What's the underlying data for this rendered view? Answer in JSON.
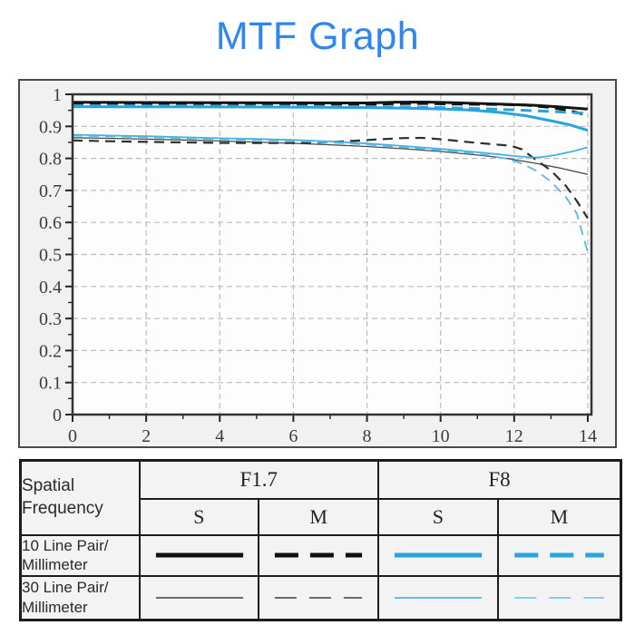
{
  "title": {
    "text": "MTF Graph",
    "color": "#2e87f0"
  },
  "chart_data": {
    "type": "line",
    "title": "MTF Graph",
    "xlabel": "",
    "ylabel": "",
    "xlim": [
      0,
      14.1
    ],
    "ylim": [
      0,
      1
    ],
    "grid": true,
    "grid_color": "#bcbcbc",
    "frame_color": "#333333",
    "x_ticks": [
      {
        "v": 0,
        "label": "0"
      },
      {
        "v": 2,
        "label": "2"
      },
      {
        "v": 4,
        "label": "4"
      },
      {
        "v": 6,
        "label": "6"
      },
      {
        "v": 8,
        "label": "8"
      },
      {
        "v": 10,
        "label": "10"
      },
      {
        "v": 12,
        "label": "12"
      },
      {
        "v": 14,
        "label": "14"
      }
    ],
    "y_ticks": [
      {
        "v": 1,
        "label": "1"
      },
      {
        "v": 0.9,
        "label": "0.9"
      },
      {
        "v": 0.8,
        "label": "0.8"
      },
      {
        "v": 0.7,
        "label": "0.7"
      },
      {
        "v": 0.6,
        "label": "0.6"
      },
      {
        "v": 0.5,
        "label": "0.5"
      },
      {
        "v": 0.4,
        "label": "0.4"
      },
      {
        "v": 0.3,
        "label": "0.3"
      },
      {
        "v": 0.2,
        "label": "0.2"
      },
      {
        "v": 0.1,
        "label": "0.1"
      },
      {
        "v": 0,
        "label": "0"
      }
    ],
    "series": [
      {
        "name": "F1.7 S 10 Line Pair/Millimeter",
        "aperture": "F1.7",
        "orientation": "S",
        "lp": "10",
        "color": "#141414",
        "width": 3,
        "dash": "none",
        "legend": {
          "color": "#111111",
          "width": 5,
          "dash": "none"
        },
        "points": [
          [
            0,
            0.975
          ],
          [
            2,
            0.9745
          ],
          [
            4,
            0.974
          ],
          [
            6,
            0.9735
          ],
          [
            8,
            0.973
          ],
          [
            8.8,
            0.9755
          ],
          [
            9.6,
            0.976
          ],
          [
            10.5,
            0.9735
          ],
          [
            11.5,
            0.97
          ],
          [
            12.5,
            0.966
          ],
          [
            13.2,
            0.961
          ],
          [
            14,
            0.954
          ]
        ]
      },
      {
        "name": "F1.7 M 10 Line Pair/Millimeter",
        "aperture": "F1.7",
        "orientation": "M",
        "lp": "10",
        "color": "#141414",
        "width": 3,
        "dash": "12 7",
        "legend": {
          "color": "#111111",
          "width": 5,
          "dash": "26 13"
        },
        "points": [
          [
            0,
            0.9675
          ],
          [
            2,
            0.967
          ],
          [
            4,
            0.9665
          ],
          [
            6,
            0.966
          ],
          [
            7.5,
            0.9665
          ],
          [
            8.8,
            0.971
          ],
          [
            9.6,
            0.9715
          ],
          [
            10.5,
            0.9695
          ],
          [
            11.5,
            0.9685
          ],
          [
            12.3,
            0.9665
          ],
          [
            13,
            0.959
          ],
          [
            13.5,
            0.949
          ],
          [
            14,
            0.9345
          ]
        ]
      },
      {
        "name": "F8 S 10 Line Pair/Millimeter",
        "aperture": "F8",
        "orientation": "S",
        "lp": "10",
        "color": "#29a3dc",
        "width": 3,
        "dash": "none",
        "legend": {
          "color": "#29a3dc",
          "width": 5,
          "dash": "none"
        },
        "points": [
          [
            0,
            0.9615
          ],
          [
            2,
            0.961
          ],
          [
            4,
            0.9605
          ],
          [
            6,
            0.96
          ],
          [
            8,
            0.9585
          ],
          [
            9,
            0.957
          ],
          [
            10,
            0.9545
          ],
          [
            10.8,
            0.951
          ],
          [
            11.6,
            0.9435
          ],
          [
            12.3,
            0.9335
          ],
          [
            13,
            0.9175
          ],
          [
            13.5,
            0.905
          ],
          [
            14,
            0.8875
          ]
        ]
      },
      {
        "name": "F8 M 10 Line Pair/Millimeter",
        "aperture": "F8",
        "orientation": "M",
        "lp": "10",
        "color": "#29a3dc",
        "width": 3,
        "dash": "12 7",
        "legend": {
          "color": "#29a3dc",
          "width": 5,
          "dash": "26 13"
        },
        "points": [
          [
            0,
            0.9645
          ],
          [
            2,
            0.964
          ],
          [
            4,
            0.9635
          ],
          [
            6,
            0.963
          ],
          [
            8,
            0.9615
          ],
          [
            9,
            0.9605
          ],
          [
            10,
            0.9585
          ],
          [
            11,
            0.9555
          ],
          [
            12,
            0.9515
          ],
          [
            13,
            0.9465
          ],
          [
            14,
            0.9405
          ]
        ]
      },
      {
        "name": "F1.7 S 30 Line Pair/Millimeter",
        "aperture": "F1.7",
        "orientation": "S",
        "lp": "30",
        "color": "#4a4a4a",
        "width": 1.3,
        "dash": "none",
        "legend": {
          "color": "#3f3f3f",
          "width": 1.5,
          "dash": "none"
        },
        "points": [
          [
            0,
            0.8645
          ],
          [
            1,
            0.8625
          ],
          [
            2,
            0.86
          ],
          [
            3,
            0.8575
          ],
          [
            4,
            0.8545
          ],
          [
            5,
            0.851
          ],
          [
            6,
            0.847
          ],
          [
            7,
            0.8425
          ],
          [
            8,
            0.837
          ],
          [
            9,
            0.83
          ],
          [
            10,
            0.8215
          ],
          [
            11,
            0.8105
          ],
          [
            11.8,
            0.8
          ],
          [
            12.6,
            0.7845
          ],
          [
            13.3,
            0.7685
          ],
          [
            14,
            0.75
          ]
        ]
      },
      {
        "name": "F1.7 M 30 Line Pair/Millimeter",
        "aperture": "F1.7",
        "orientation": "M",
        "lp": "30",
        "color": "#2e2e2e",
        "width": 2.2,
        "dash": "11 7",
        "legend": {
          "color": "#6a6a6a",
          "width": 2,
          "dash": "24 14"
        },
        "points": [
          [
            0,
            0.856
          ],
          [
            1,
            0.8535
          ],
          [
            2,
            0.8515
          ],
          [
            3,
            0.85
          ],
          [
            4,
            0.8485
          ],
          [
            5,
            0.848
          ],
          [
            6,
            0.848
          ],
          [
            6.8,
            0.85
          ],
          [
            7.6,
            0.8545
          ],
          [
            8.4,
            0.86
          ],
          [
            9,
            0.8635
          ],
          [
            9.5,
            0.864
          ],
          [
            10.1,
            0.859
          ],
          [
            10.8,
            0.8505
          ],
          [
            11.4,
            0.8445
          ],
          [
            11.9,
            0.8395
          ],
          [
            12.2,
            0.829
          ],
          [
            12.6,
            0.795
          ],
          [
            13,
            0.762
          ],
          [
            13.4,
            0.715
          ],
          [
            13.7,
            0.667
          ],
          [
            14,
            0.613
          ]
        ]
      },
      {
        "name": "F8 S 30 Line Pair/Millimeter",
        "aperture": "F8",
        "orientation": "S",
        "lp": "30",
        "color": "#45b0e2",
        "width": 1.8,
        "dash": "none",
        "legend": {
          "color": "#63bde7",
          "width": 2,
          "dash": "none"
        },
        "points": [
          [
            0,
            0.874
          ],
          [
            1,
            0.8715
          ],
          [
            2,
            0.869
          ],
          [
            3,
            0.866
          ],
          [
            4,
            0.863
          ],
          [
            5,
            0.8605
          ],
          [
            6,
            0.8575
          ],
          [
            7,
            0.853
          ],
          [
            8,
            0.8465
          ],
          [
            9,
            0.8385
          ],
          [
            10,
            0.8295
          ],
          [
            10.8,
            0.8215
          ],
          [
            11.5,
            0.8135
          ],
          [
            12,
            0.8075
          ],
          [
            12.4,
            0.8035
          ],
          [
            12.7,
            0.8035
          ],
          [
            13.1,
            0.81
          ],
          [
            13.6,
            0.822
          ],
          [
            14,
            0.8345
          ]
        ]
      },
      {
        "name": "F8 M 30 Line Pair/Millimeter",
        "aperture": "F8",
        "orientation": "M",
        "lp": "30",
        "color": "#58b9e5",
        "width": 1.8,
        "dash": "11 7",
        "legend": {
          "color": "#85ccee",
          "width": 2,
          "dash": "24 14"
        },
        "points": [
          [
            0,
            0.871
          ],
          [
            1,
            0.8685
          ],
          [
            2,
            0.866
          ],
          [
            3,
            0.863
          ],
          [
            4,
            0.86
          ],
          [
            5,
            0.857
          ],
          [
            6,
            0.854
          ],
          [
            7,
            0.8495
          ],
          [
            8,
            0.843
          ],
          [
            9,
            0.8345
          ],
          [
            10,
            0.825
          ],
          [
            10.7,
            0.8175
          ],
          [
            11.3,
            0.8095
          ],
          [
            11.8,
            0.799
          ],
          [
            12.2,
            0.7845
          ],
          [
            12.6,
            0.7615
          ],
          [
            13,
            0.7275
          ],
          [
            13.4,
            0.6795
          ],
          [
            13.7,
            0.6285
          ],
          [
            14,
            0.5065
          ]
        ]
      }
    ]
  },
  "legend_table": {
    "spatial_frequency": "Spatial\nFrequency",
    "aperture_groups": [
      {
        "label": "F1.7"
      },
      {
        "label": "F8"
      }
    ],
    "sub_columns": [
      {
        "label": "S"
      },
      {
        "label": "M"
      },
      {
        "label": "S"
      },
      {
        "label": "M"
      }
    ],
    "rows": [
      {
        "label": "10 Line Pair/\nMillimeter"
      },
      {
        "label": "30 Line Pair/\nMillimeter"
      }
    ]
  }
}
